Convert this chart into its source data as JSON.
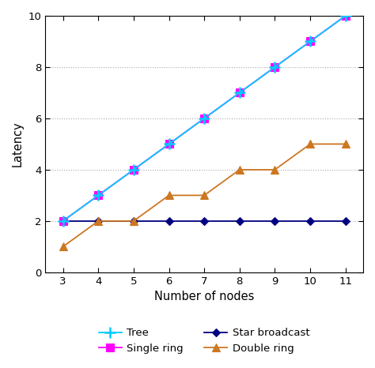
{
  "x": [
    3,
    4,
    5,
    6,
    7,
    8,
    9,
    10,
    11
  ],
  "tree": [
    2,
    3,
    4,
    5,
    6,
    7,
    8,
    9,
    10
  ],
  "single_ring": [
    2,
    3,
    4,
    5,
    6,
    7,
    8,
    9,
    10
  ],
  "star_broadcast": [
    2,
    2,
    2,
    2,
    2,
    2,
    2,
    2,
    2
  ],
  "double_ring": [
    1,
    2,
    2,
    3,
    3,
    4,
    4,
    5,
    5
  ],
  "tree_color": "#00ccff",
  "single_ring_color": "#ff00ff",
  "star_broadcast_color": "#000080",
  "double_ring_color": "#cc7722",
  "xlabel": "Number of nodes",
  "ylabel": "Latency",
  "xlim": [
    2.5,
    11.5
  ],
  "ylim": [
    0,
    10
  ],
  "yticks": [
    0,
    2,
    4,
    6,
    8,
    10
  ],
  "xticks": [
    3,
    4,
    5,
    6,
    7,
    8,
    9,
    10,
    11
  ]
}
